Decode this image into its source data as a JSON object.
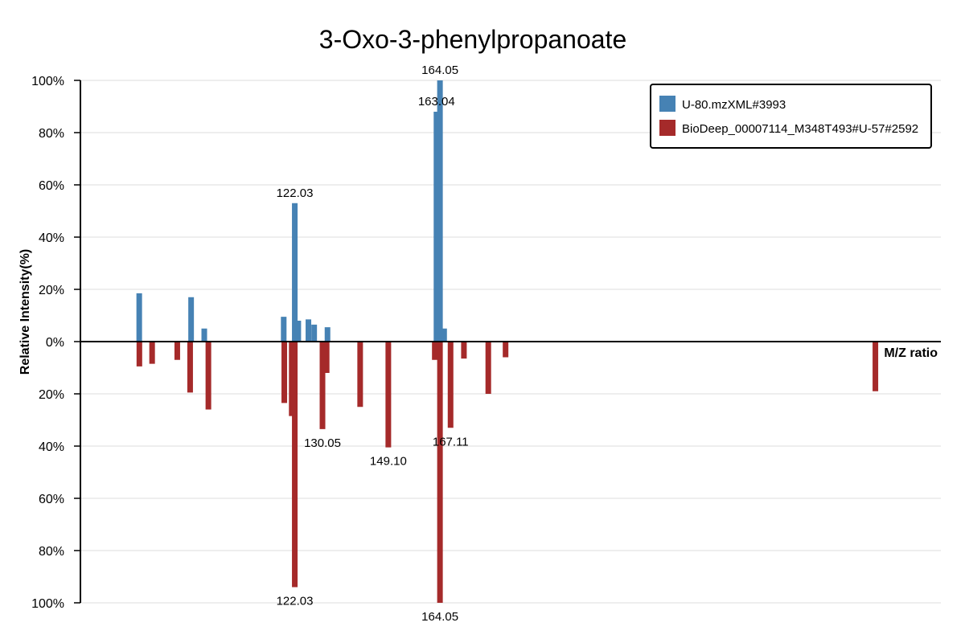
{
  "chart_data": {
    "type": "bar",
    "title": "3-Oxo-3-phenylpropanoate",
    "xlabel": "M/Z ratio",
    "ylabel": "Relative Intensity(%)",
    "ylim": [
      -100,
      100
    ],
    "xlim": [
      60,
      309
    ],
    "yticks": [
      {
        "value": 100,
        "label": "100%"
      },
      {
        "value": 80,
        "label": "80%"
      },
      {
        "value": 60,
        "label": "60%"
      },
      {
        "value": 40,
        "label": "40%"
      },
      {
        "value": 20,
        "label": "20%"
      },
      {
        "value": 0,
        "label": "0%"
      },
      {
        "value": -20,
        "label": "20%"
      },
      {
        "value": -40,
        "label": "40%"
      },
      {
        "value": -60,
        "label": "60%"
      },
      {
        "value": -80,
        "label": "80%"
      },
      {
        "value": -100,
        "label": "100%"
      }
    ],
    "grid": true,
    "legend_position": "top-right",
    "series": [
      {
        "name": "U-80.mzXML#3993",
        "color": "#4682b4",
        "direction": "up",
        "peaks": [
          {
            "mz": 77.02,
            "intensity": 18.5
          },
          {
            "mz": 92.03,
            "intensity": 17.0
          },
          {
            "mz": 95.84,
            "intensity": 5.0
          },
          {
            "mz": 118.83,
            "intensity": 9.5
          },
          {
            "mz": 122.03,
            "intensity": 53.0,
            "label": "122.03"
          },
          {
            "mz": 123.04,
            "intensity": 8.0
          },
          {
            "mz": 125.98,
            "intensity": 8.5
          },
          {
            "mz": 127.64,
            "intensity": 6.5
          },
          {
            "mz": 131.5,
            "intensity": 5.5
          },
          {
            "mz": 163.04,
            "intensity": 88.0,
            "label": "163.04"
          },
          {
            "mz": 164.05,
            "intensity": 100.0,
            "label": "164.05"
          },
          {
            "mz": 165.25,
            "intensity": 5.0
          }
        ]
      },
      {
        "name": "BioDeep_00007114_M348T493#U-57#2592",
        "color": "#a52a2a",
        "direction": "down",
        "peaks": [
          {
            "mz": 77.06,
            "intensity": 9.5
          },
          {
            "mz": 80.75,
            "intensity": 8.5
          },
          {
            "mz": 88.03,
            "intensity": 7.0
          },
          {
            "mz": 91.75,
            "intensity": 19.5
          },
          {
            "mz": 97.03,
            "intensity": 26.0
          },
          {
            "mz": 119.0,
            "intensity": 23.5
          },
          {
            "mz": 121.15,
            "intensity": 28.5
          },
          {
            "mz": 122.03,
            "intensity": 94.0,
            "label": "122.03"
          },
          {
            "mz": 130.05,
            "intensity": 33.5,
            "label": "130.05"
          },
          {
            "mz": 131.25,
            "intensity": 12.0
          },
          {
            "mz": 140.95,
            "intensity": 25.0
          },
          {
            "mz": 149.1,
            "intensity": 40.5,
            "label": "149.10"
          },
          {
            "mz": 162.55,
            "intensity": 7.0
          },
          {
            "mz": 164.05,
            "intensity": 100.0,
            "label": "164.05"
          },
          {
            "mz": 167.11,
            "intensity": 33.0,
            "label": "167.11"
          },
          {
            "mz": 170.98,
            "intensity": 6.5
          },
          {
            "mz": 178.03,
            "intensity": 20.0
          },
          {
            "mz": 183.03,
            "intensity": 6.0
          },
          {
            "mz": 290.05,
            "intensity": 19.0
          }
        ]
      }
    ]
  }
}
